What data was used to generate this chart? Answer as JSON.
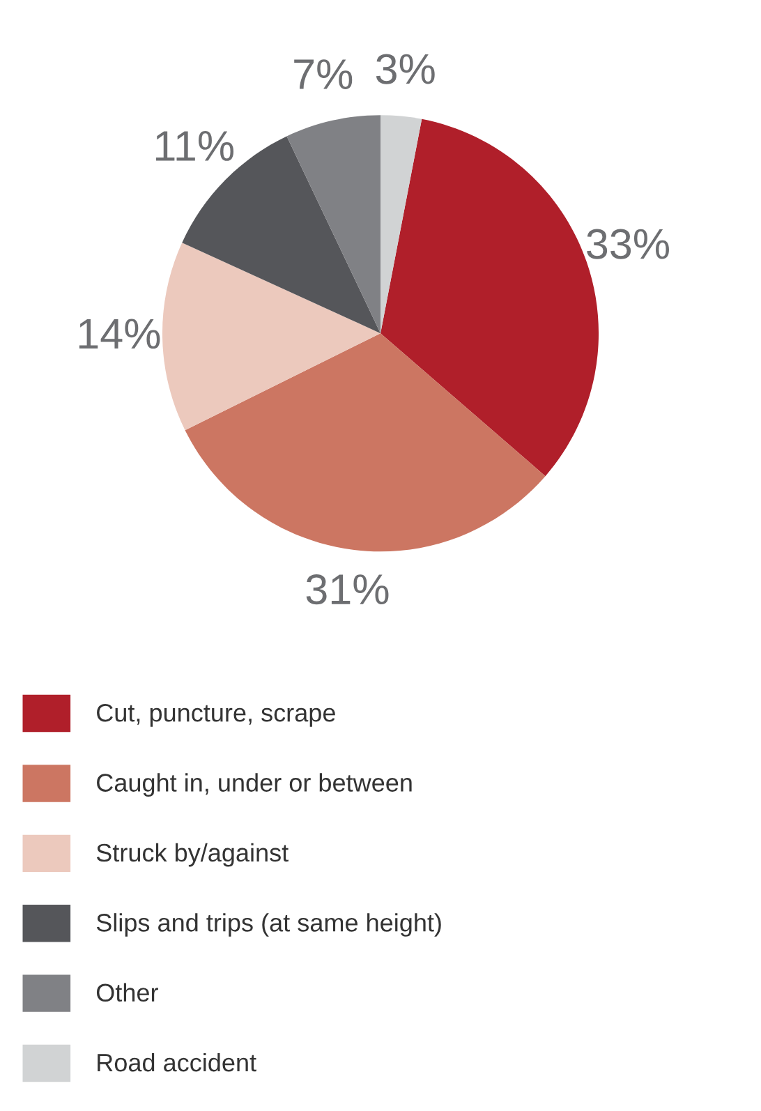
{
  "chart_data": {
    "type": "pie",
    "categories": [
      "Cut, puncture, scrape",
      "Caught in, under or between",
      "Struck by/against",
      "Slips and trips (at same height)",
      "Other",
      "Road accident"
    ],
    "values": [
      33,
      31,
      14,
      11,
      7,
      3
    ],
    "value_labels": [
      "33%",
      "31%",
      "14%",
      "11%",
      "7%",
      "3%"
    ],
    "colors": [
      "#b01f2a",
      "#cc7662",
      "#ecc9bd",
      "#55565a",
      "#808185",
      "#d1d3d4"
    ],
    "legend": "bottom"
  }
}
